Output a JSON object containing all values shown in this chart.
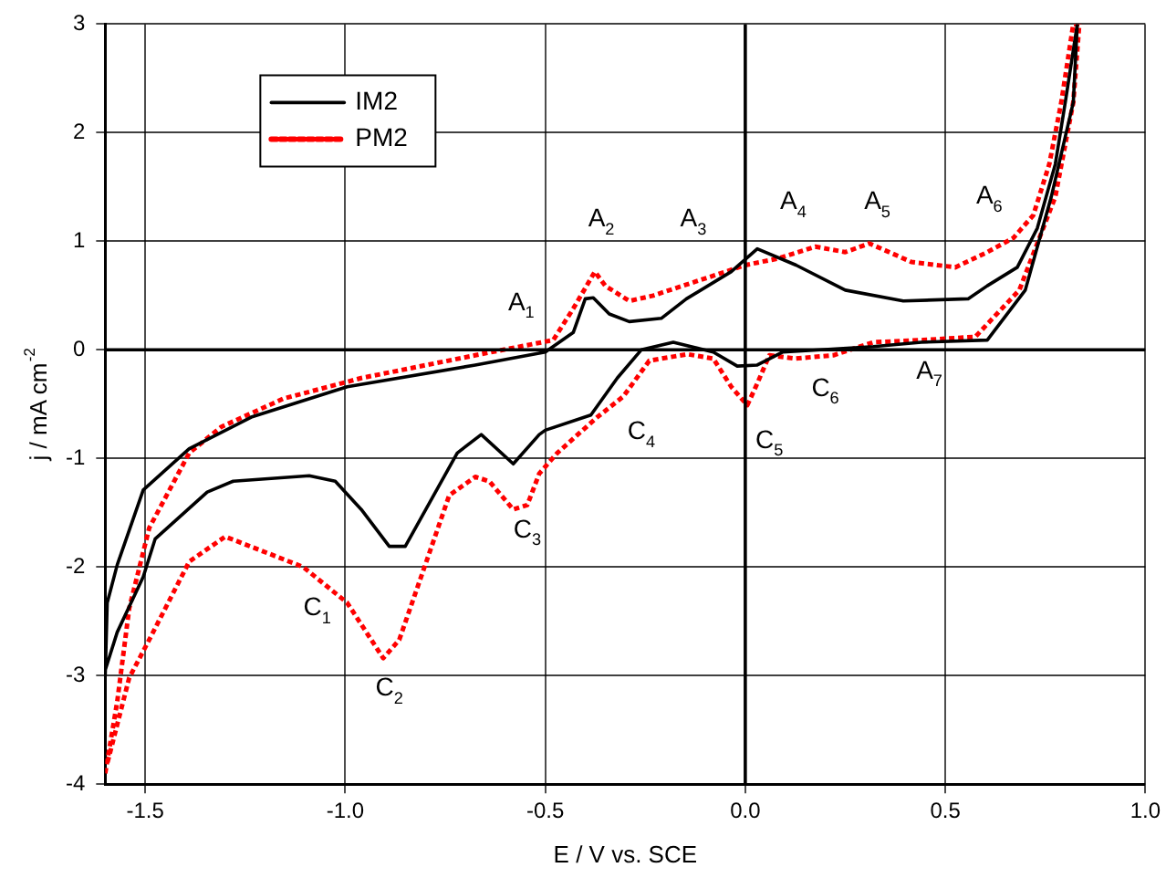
{
  "chart_data": {
    "type": "line",
    "xlabel": "E / V vs. SCE",
    "ylabel": "j / mA cm$^{-2}$",
    "xlim": [
      -1.6,
      1.0
    ],
    "ylim": [
      -4,
      3
    ],
    "xticks": [
      -1.5,
      {
        "value": -1,
        "label": "-1.0"
      },
      -0.5,
      {
        "value": 0,
        "label": "0.0"
      },
      0.5,
      {
        "value": 1,
        "label": "1.0"
      }
    ],
    "yticks": [
      -4,
      -3,
      -2,
      -1,
      0,
      1,
      2,
      3
    ],
    "grid": true,
    "legend": "top left",
    "marker": "none",
    "series": [
      {
        "name": "IM2",
        "color": "#000000",
        "line_style": "solid",
        "x": [
          -1.6,
          -1.595,
          -1.57,
          -1.505,
          -1.39,
          -1.235,
          -0.995,
          -0.675,
          -0.5,
          -0.43,
          -0.4,
          -0.38,
          -0.34,
          -0.29,
          -0.21,
          -0.147,
          -0.035,
          0.03,
          0.127,
          0.25,
          0.395,
          0.557,
          0.605,
          0.68,
          0.73,
          0.775,
          0.8,
          0.83,
          0.82,
          0.765,
          0.7,
          0.605,
          0.44,
          0.32,
          0.094,
          0.03,
          -0.02,
          -0.08,
          -0.18,
          -0.26,
          -0.32,
          -0.386,
          -0.5,
          -0.515,
          -0.58,
          -0.66,
          -0.72,
          -0.85,
          -0.89,
          -0.96,
          -1.025,
          -1.09,
          -1.28,
          -1.345,
          -1.475,
          -1.505,
          -1.57,
          -1.6
        ],
        "values": [
          -3.0,
          -2.33,
          -1.98,
          -1.29,
          -0.91,
          -0.62,
          -0.34,
          -0.14,
          -0.02,
          0.16,
          0.47,
          0.48,
          0.33,
          0.26,
          0.29,
          0.47,
          0.72,
          0.93,
          0.78,
          0.55,
          0.45,
          0.47,
          0.59,
          0.76,
          1.12,
          1.71,
          2.28,
          3.0,
          2.28,
          1.41,
          0.55,
          0.09,
          0.07,
          0.03,
          -0.02,
          -0.14,
          -0.15,
          -0.02,
          0.07,
          0.0,
          -0.26,
          -0.6,
          -0.74,
          -0.78,
          -1.05,
          -0.78,
          -0.95,
          -1.81,
          -1.81,
          -1.47,
          -1.21,
          -1.16,
          -1.21,
          -1.31,
          -1.74,
          -2.09,
          -2.6,
          -2.95
        ]
      },
      {
        "name": "PM2",
        "color": "#ff0000",
        "line_style": "dotted",
        "x": [
          -1.6,
          -1.57,
          -1.54,
          -1.49,
          -1.39,
          -1.31,
          -1.155,
          -0.96,
          -0.675,
          -0.48,
          -0.43,
          -0.376,
          -0.35,
          -0.29,
          -0.23,
          -0.115,
          0,
          0.08,
          0.175,
          0.25,
          0.31,
          0.415,
          0.525,
          0.605,
          0.67,
          0.72,
          0.76,
          0.79,
          0.82,
          0.835,
          0.82,
          0.775,
          0.685,
          0.575,
          0.445,
          0.32,
          0.22,
          0.125,
          0.06,
          0.03,
          0.005,
          -0.035,
          -0.08,
          -0.145,
          -0.24,
          -0.305,
          -0.37,
          -0.47,
          -0.515,
          -0.545,
          -0.58,
          -0.64,
          -0.675,
          -0.74,
          -0.8,
          -0.865,
          -0.905,
          -0.995,
          -1.105,
          -1.3,
          -1.39,
          -1.49,
          -1.54,
          -1.595
        ],
        "values": [
          -3.9,
          -3.24,
          -2.38,
          -1.64,
          -0.95,
          -0.71,
          -0.45,
          -0.26,
          -0.05,
          0.09,
          0.38,
          0.72,
          0.59,
          0.45,
          0.5,
          0.64,
          0.78,
          0.84,
          0.95,
          0.9,
          0.98,
          0.81,
          0.76,
          0.9,
          1.03,
          1.24,
          1.71,
          2.28,
          3.0,
          3.0,
          2.28,
          1.41,
          0.55,
          0.12,
          0.09,
          0.07,
          -0.05,
          -0.08,
          -0.05,
          -0.31,
          -0.51,
          -0.34,
          -0.08,
          -0.04,
          -0.1,
          -0.43,
          -0.62,
          -0.95,
          -1.14,
          -1.43,
          -1.47,
          -1.21,
          -1.17,
          -1.34,
          -1.98,
          -2.67,
          -2.84,
          -2.33,
          -2.0,
          -1.72,
          -1.95,
          -2.67,
          -3.02,
          -3.81
        ]
      }
    ],
    "annotations": [
      "A$_{1}$",
      "A$_{2}$",
      "A$_{3}$",
      "A$_{4}$",
      "A$_{5}$",
      "A$_{6}$",
      "A$_{7}$",
      "C$_{1}$",
      "C$_{2}$",
      "C$_{3}$",
      "C$_{4}$",
      "C$_{5}$",
      "C$_{6}$"
    ]
  }
}
